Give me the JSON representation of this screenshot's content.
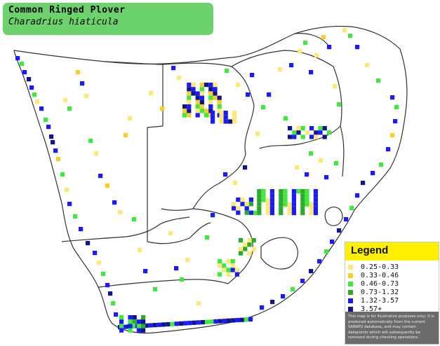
{
  "title": {
    "common_name": "Common Ringed Plover",
    "scientific_name": "Charadrius hiaticula",
    "background": "#6cd36c"
  },
  "legend": {
    "title": "Legend",
    "header_color": "#fff000",
    "items": [
      {
        "label": "0.25-0.33",
        "color": "#ffe873"
      },
      {
        "label": "0.33-0.46",
        "color": "#f5cf2b"
      },
      {
        "label": "0.46-0.73",
        "color": "#3fe83f"
      },
      {
        "label": "0.73-1.32",
        "color": "#2caa2c"
      },
      {
        "label": "1.32-3.57",
        "color": "#1a1aff"
      },
      {
        "label": "3.57+",
        "color": "#12148f"
      }
    ],
    "disclaimer": "This map is for illustrative purposes only; it is produced automatically from the current SABAP2 database, and may contain datapoints which will subsequently be removed during checking operations."
  },
  "map": {
    "border_color": "#333333",
    "cell_colors": {
      "y": "#ffe873",
      "o": "#f5cf2b",
      "g": "#3fe83f",
      "G": "#2caa2c",
      "b": "#1a1aff",
      "n": "#12148f"
    }
  }
}
